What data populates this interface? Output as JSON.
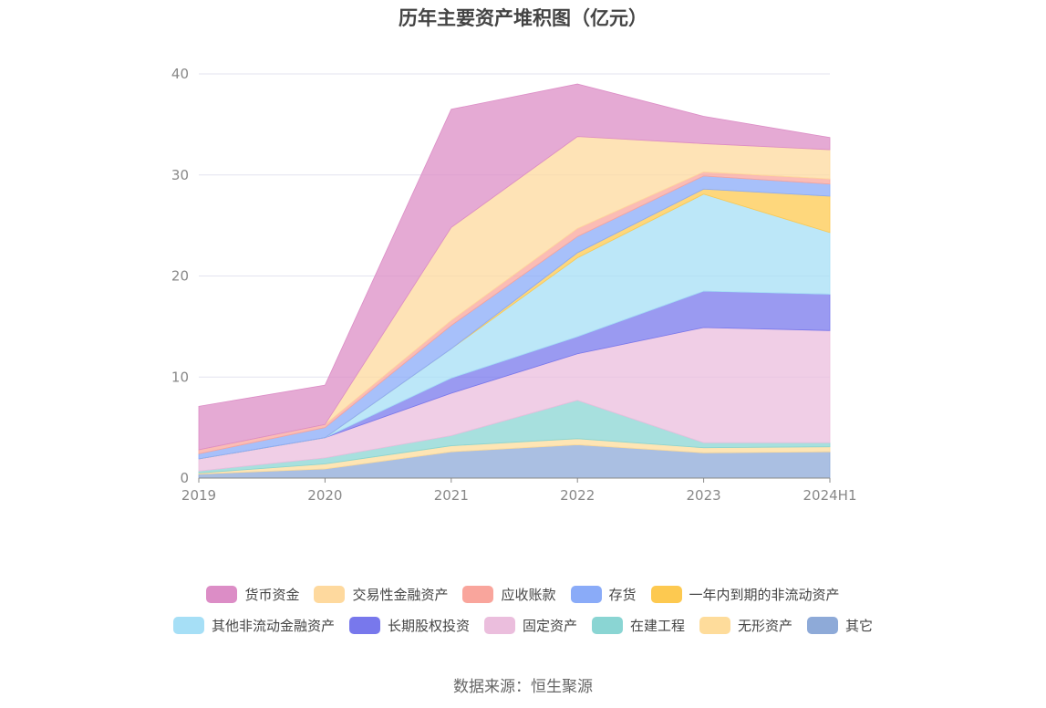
{
  "chart_data": {
    "type": "area",
    "stacked": true,
    "title": "历年主要资产堆积图（亿元）",
    "categories": [
      "2019",
      "2020",
      "2021",
      "2022",
      "2023",
      "2024H1"
    ],
    "ylim": [
      0,
      40
    ],
    "yticks": [
      "0",
      "10",
      "20",
      "30",
      "40"
    ],
    "grid": true,
    "legend_position": "bottom",
    "series": [
      {
        "name": "其它",
        "color": "#8eaad8",
        "values": [
          0.4,
          0.9,
          2.6,
          3.3,
          2.5,
          2.6
        ]
      },
      {
        "name": "无形资产",
        "color": "#fedc9b",
        "values": [
          0.1,
          0.5,
          0.6,
          0.6,
          0.5,
          0.5
        ]
      },
      {
        "name": "在建工程",
        "color": "#8ad5d3",
        "values": [
          0.2,
          0.6,
          1.0,
          3.8,
          0.5,
          0.4
        ]
      },
      {
        "name": "固定资产",
        "color": "#ebbedd",
        "values": [
          1.2,
          2.0,
          4.2,
          4.6,
          11.4,
          11.1
        ]
      },
      {
        "name": "长期股权投资",
        "color": "#7878ec",
        "values": [
          0.0,
          0.0,
          1.5,
          1.7,
          3.6,
          3.6
        ]
      },
      {
        "name": "其他非流动金融资产",
        "color": "#a6dff6",
        "values": [
          0.0,
          0.0,
          2.9,
          7.8,
          9.6,
          6.1
        ]
      },
      {
        "name": "一年内到期的非流动资产",
        "color": "#fdc950",
        "values": [
          0.0,
          0.0,
          0.0,
          0.5,
          0.5,
          3.6
        ]
      },
      {
        "name": "存货",
        "color": "#8aabf8",
        "values": [
          0.5,
          1.0,
          2.3,
          1.6,
          1.3,
          1.2
        ]
      },
      {
        "name": "应收账款",
        "color": "#f9a59c",
        "values": [
          0.4,
          0.3,
          0.5,
          0.8,
          0.4,
          0.5
        ]
      },
      {
        "name": "交易性金融资产",
        "color": "#fed99e",
        "values": [
          0.0,
          0.0,
          9.2,
          9.1,
          2.8,
          2.9
        ]
      },
      {
        "name": "货币资金",
        "color": "#dc8dc6",
        "values": [
          4.3,
          3.9,
          11.7,
          5.2,
          2.7,
          1.2
        ]
      }
    ]
  },
  "legend": {
    "row1": [
      {
        "name": "货币资金",
        "color": "#dc8dc6"
      },
      {
        "name": "交易性金融资产",
        "color": "#fed99e"
      },
      {
        "name": "应收账款",
        "color": "#f9a59c"
      },
      {
        "name": "存货",
        "color": "#8aabf8"
      },
      {
        "name": "一年内到期的非流动资产",
        "color": "#fdc950"
      }
    ],
    "row2": [
      {
        "name": "其他非流动金融资产",
        "color": "#a6dff6"
      },
      {
        "name": "长期股权投资",
        "color": "#7878ec"
      },
      {
        "name": "固定资产",
        "color": "#ebbedd"
      },
      {
        "name": "在建工程",
        "color": "#8ad5d3"
      },
      {
        "name": "无形资产",
        "color": "#fedc9b"
      },
      {
        "name": "其它",
        "color": "#8eaad8"
      }
    ]
  },
  "source": "数据来源：恒生聚源"
}
